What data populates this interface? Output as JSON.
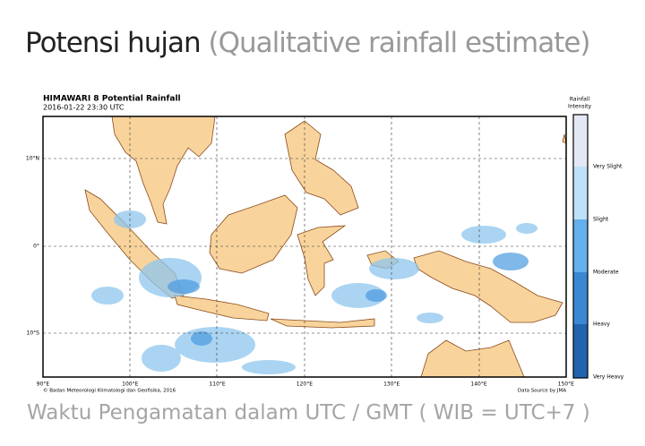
{
  "header": {
    "title": "Potensi hujan",
    "subtitle": "(Qualitative rainfall estimate)"
  },
  "map": {
    "title": "HIMAWARI 8 Potential Rainfall",
    "timestamp": "2016-01-22  23:30 UTC",
    "legend_title": [
      "Rainfall",
      "Intensity"
    ],
    "legend_levels": [
      "Very Slight",
      "Slight",
      "Moderate",
      "Heavy",
      "Very Heavy"
    ],
    "lat_labels": [
      "10°N",
      "0°",
      "10°S"
    ],
    "lon_labels": [
      "90°E",
      "100°E",
      "110°E",
      "120°E",
      "130°E",
      "140°E",
      "150°E"
    ],
    "credit": "© Badan Meteorologi Klimatologi dan Geofisika, 2016",
    "source": "Data Source by JMA"
  },
  "footer": "Waktu Pengamatan dalam UTC / GMT ( WIB = UTC+7 )"
}
